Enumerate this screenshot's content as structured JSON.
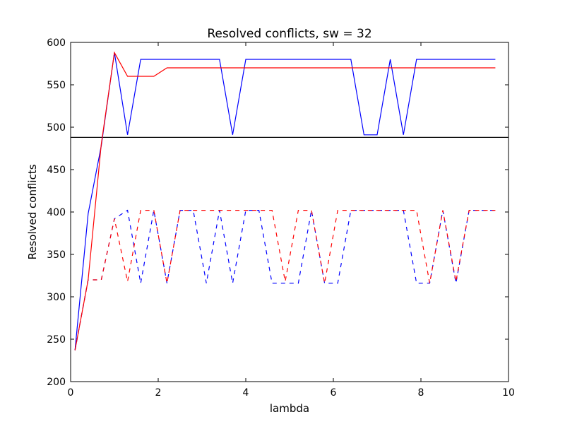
{
  "chart_data": {
    "type": "line",
    "title": "Resolved conflicts, sw = 32",
    "xlabel": "lambda",
    "ylabel": "Resolved conflicts",
    "xlim": [
      0,
      10
    ],
    "ylim": [
      200,
      600
    ],
    "xticks": [
      0,
      2,
      4,
      6,
      8,
      10
    ],
    "yticks": [
      200,
      250,
      300,
      350,
      400,
      450,
      500,
      550,
      600
    ],
    "grid": false,
    "legend": "none",
    "x": [
      0.1,
      0.4,
      0.7,
      1.0,
      1.3,
      1.6,
      1.9,
      2.2,
      2.5,
      2.8,
      3.1,
      3.4,
      3.7,
      4.0,
      4.3,
      4.6,
      4.9,
      5.2,
      5.5,
      5.8,
      6.1,
      6.4,
      6.7,
      7.0,
      7.3,
      7.6,
      7.9,
      8.2,
      8.5,
      8.8,
      9.1,
      9.4,
      9.7
    ],
    "series": [
      {
        "color": "#0000ff",
        "style": "solid",
        "values": [
          237,
          398,
          478,
          588,
          491,
          580,
          580,
          580,
          580,
          580,
          580,
          580,
          491,
          580,
          580,
          580,
          580,
          580,
          580,
          580,
          580,
          580,
          491,
          491,
          580,
          491,
          580,
          580,
          580,
          580,
          580,
          580,
          580
        ]
      },
      {
        "color": "#ff0000",
        "style": "solid",
        "values": [
          237,
          320,
          480,
          588,
          560,
          560,
          560,
          570,
          570,
          570,
          570,
          570,
          570,
          570,
          570,
          570,
          570,
          570,
          570,
          570,
          570,
          570,
          570,
          570,
          570,
          570,
          570,
          570,
          570,
          570,
          570,
          570,
          570
        ]
      },
      {
        "color": "#0000ff",
        "style": "dashed",
        "values": [
          237,
          320,
          320,
          392,
          402,
          316,
          402,
          316,
          402,
          402,
          316,
          402,
          316,
          402,
          402,
          316,
          316,
          316,
          402,
          316,
          316,
          402,
          402,
          402,
          402,
          402,
          316,
          316,
          402,
          316,
          402,
          402,
          402
        ]
      },
      {
        "color": "#ff0000",
        "style": "dashed",
        "values": [
          237,
          320,
          320,
          392,
          318,
          402,
          402,
          316,
          402,
          402,
          402,
          402,
          402,
          402,
          402,
          402,
          318,
          402,
          402,
          316,
          402,
          402,
          402,
          402,
          402,
          402,
          402,
          316,
          402,
          318,
          402,
          402,
          402
        ]
      }
    ],
    "reference_line": {
      "y": 488,
      "color": "#000000",
      "style": "solid"
    }
  }
}
